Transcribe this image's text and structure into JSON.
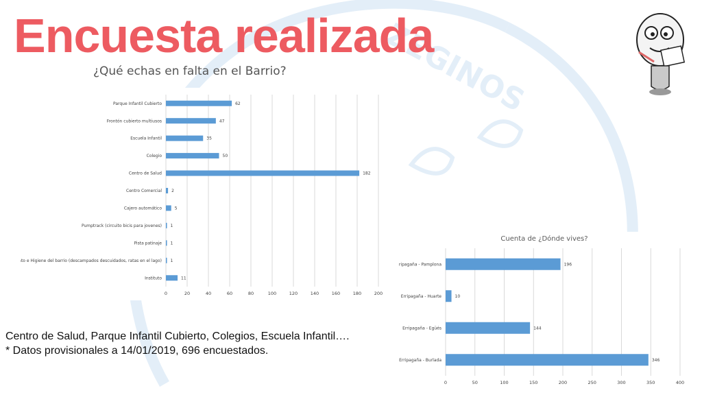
{
  "header": {
    "title": "Encuesta realizada"
  },
  "watermark": {
    "text": "ZEGINOS",
    "color": "#dde9f5"
  },
  "mascot": {
    "icon": "lightbulb-mascot-icon"
  },
  "chart_data": [
    {
      "type": "bar",
      "orientation": "horizontal",
      "title": "¿Qué echas en falta en el Barrio?",
      "categories": [
        "Parque Infantil Cubierto",
        "Frontón cubierto multiusos",
        "Escuela Infantil",
        "Colegio",
        "Centro de Salud",
        "Centro Comercial",
        "Cajero automático",
        "Pumptrack (circuito bicis para jovenes)",
        "Pista patinaje",
        "Mantenimiento e Higiene del barrio (descampados descuidados, ratas en el lago)",
        "Instituto"
      ],
      "values": [
        62,
        47,
        35,
        50,
        182,
        2,
        5,
        1,
        1,
        1,
        11
      ],
      "data_labels": [
        "62",
        "47",
        "35",
        "50",
        "182",
        "2",
        "5",
        "1",
        "1",
        "1",
        "11"
      ],
      "xlim": [
        0,
        200
      ],
      "xticks": [
        "0",
        "20",
        "40",
        "60",
        "80",
        "100",
        "120",
        "140",
        "160",
        "180",
        "200"
      ],
      "grid": true,
      "bar_color": "#5b9bd5"
    },
    {
      "type": "bar",
      "orientation": "horizontal",
      "title": "Cuenta de ¿Dónde vives?",
      "categories": [
        "Erripagaña - Pamplona",
        "Erripagaña - Huarte",
        "Erripagaña - Egüés",
        "Erripagaña - Burlada"
      ],
      "values": [
        196,
        10,
        144,
        346
      ],
      "data_labels": [
        "196",
        "10",
        "144",
        "346"
      ],
      "xlim": [
        0,
        400
      ],
      "xticks": [
        "0",
        "50",
        "100",
        "150",
        "200",
        "250",
        "300",
        "350",
        "400"
      ],
      "grid": true,
      "bar_color": "#5b9bd5"
    }
  ],
  "footer": {
    "line1": "Centro de Salud, Parque Infantil Cubierto, Colegios, Escuela Infantil….",
    "line2": "* Datos provisionales a 14/01/2019, 696 encuestados."
  }
}
